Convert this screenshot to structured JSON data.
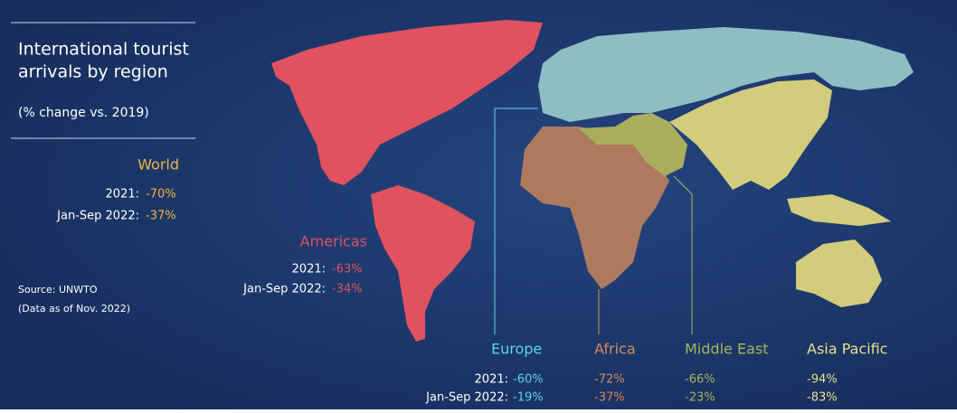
{
  "title": [
    "International tourist",
    "arrivals by region"
  ],
  "subtitle": "(% change vs. 2019)",
  "source": "Source: UNWTO",
  "note": "(Data as of Nov. 2022)",
  "world": {
    "name": "World",
    "labels": [
      "2021:",
      "Jan-Sep 2022:"
    ],
    "values": [
      "-70%",
      "-37%"
    ]
  },
  "americas": {
    "name": "Americas",
    "labels": [
      "2021:",
      "Jan-Sep 2022:"
    ],
    "values": [
      "-63%",
      "-34%"
    ]
  },
  "bottom_labels": [
    "2021:",
    "Jan-Sep 2022:"
  ],
  "regions": [
    {
      "name": "Europe",
      "values": [
        "-60%",
        "-19%"
      ]
    },
    {
      "name": "Africa",
      "values": [
        "-72%",
        "-37%"
      ]
    },
    {
      "name": "Middle East",
      "values": [
        "-66%",
        "-23%"
      ]
    },
    {
      "name": "Asia Pacific",
      "values": [
        "-94%",
        "-83%"
      ]
    }
  ]
}
